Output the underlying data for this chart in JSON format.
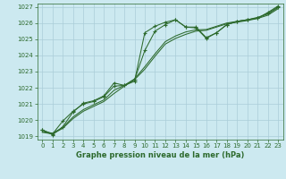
{
  "bg_color": "#cce9f0",
  "grid_color": "#aacdd8",
  "line_color": "#2d6a2d",
  "title": "Graphe pression niveau de la mer (hPa)",
  "xlim": [
    -0.5,
    23.5
  ],
  "ylim": [
    1018.8,
    1027.2
  ],
  "yticks": [
    1019,
    1020,
    1021,
    1022,
    1023,
    1024,
    1025,
    1026,
    1027
  ],
  "xticks": [
    0,
    1,
    2,
    3,
    4,
    5,
    6,
    7,
    8,
    9,
    10,
    11,
    12,
    13,
    14,
    15,
    16,
    17,
    18,
    19,
    20,
    21,
    22,
    23
  ],
  "line1_x": [
    0,
    1,
    2,
    3,
    4,
    5,
    6,
    7,
    8,
    9,
    10,
    11,
    12,
    13,
    14,
    15,
    16,
    17,
    18,
    19,
    20,
    21,
    22,
    23
  ],
  "line1_y": [
    1019.4,
    1019.1,
    1019.6,
    1020.5,
    1021.05,
    1021.2,
    1021.5,
    1022.3,
    1022.15,
    1022.4,
    1025.4,
    1025.8,
    1026.05,
    1026.2,
    1025.75,
    1025.7,
    1025.05,
    1025.4,
    1025.9,
    1026.1,
    1026.2,
    1026.3,
    1026.65,
    1027.05
  ],
  "line2_x": [
    0,
    1,
    2,
    3,
    4,
    5,
    6,
    7,
    8,
    9,
    10,
    11,
    12,
    13,
    14,
    15,
    16,
    17,
    18,
    19,
    20,
    21,
    22,
    23
  ],
  "line2_y": [
    1019.3,
    1019.2,
    1019.55,
    1020.2,
    1020.65,
    1020.95,
    1021.25,
    1021.85,
    1022.15,
    1022.55,
    1023.3,
    1024.1,
    1024.85,
    1025.2,
    1025.45,
    1025.58,
    1025.6,
    1025.8,
    1026.0,
    1026.1,
    1026.2,
    1026.35,
    1026.55,
    1026.95
  ],
  "line3_x": [
    0,
    1,
    2,
    3,
    4,
    5,
    6,
    7,
    8,
    9,
    10,
    11,
    12,
    13,
    14,
    15,
    16,
    17,
    18,
    19,
    20,
    21,
    22,
    23
  ],
  "line3_y": [
    1019.25,
    1019.15,
    1019.5,
    1020.1,
    1020.55,
    1020.85,
    1021.15,
    1021.65,
    1022.1,
    1022.5,
    1023.15,
    1023.95,
    1024.7,
    1025.05,
    1025.3,
    1025.5,
    1025.55,
    1025.75,
    1025.95,
    1026.05,
    1026.15,
    1026.28,
    1026.48,
    1026.88
  ],
  "line4_x": [
    0,
    1,
    2,
    3,
    4,
    5,
    6,
    7,
    8,
    9,
    10,
    11,
    12,
    13,
    14,
    15,
    16,
    17,
    18,
    19,
    20,
    21,
    22,
    23
  ],
  "line4_y": [
    1019.4,
    1019.15,
    1019.95,
    1020.55,
    1021.0,
    1021.15,
    1021.45,
    1022.1,
    1022.15,
    1022.5,
    1024.3,
    1025.5,
    1025.9,
    1026.2,
    1025.75,
    1025.75,
    1025.1,
    1025.4,
    1025.9,
    1026.1,
    1026.2,
    1026.3,
    1026.6,
    1027.0
  ]
}
